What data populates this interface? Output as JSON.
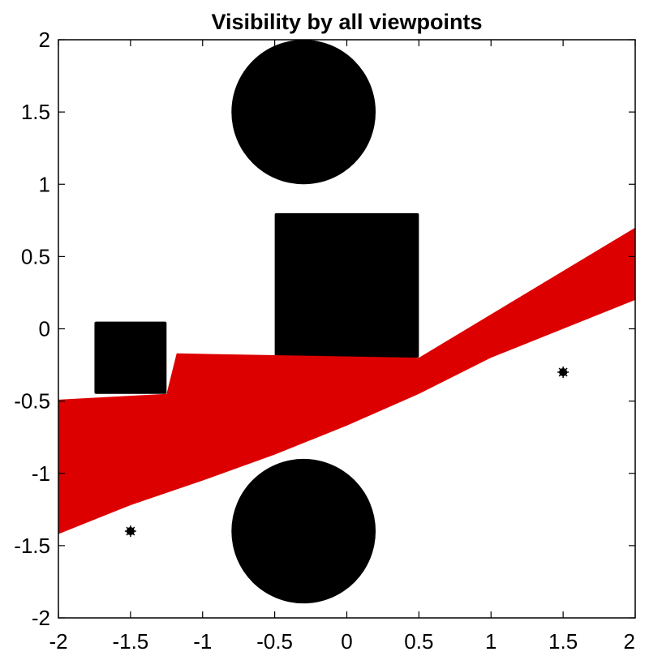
{
  "chart_data": {
    "type": "scatter",
    "title": "Visibility by all viewpoints",
    "xlabel": "",
    "ylabel": "",
    "xlim": [
      -2,
      2
    ],
    "ylim": [
      -2,
      2
    ],
    "xticks": [
      -2,
      -1.5,
      -1,
      -0.5,
      0,
      0.5,
      1,
      1.5,
      2
    ],
    "xtick_labels": [
      "-2",
      "-1.5",
      "-1",
      "-0.5",
      "0",
      "0.5",
      "1",
      "1.5",
      "2"
    ],
    "yticks": [
      -2,
      -1.5,
      -1,
      -0.5,
      0,
      0.5,
      1,
      1.5,
      2
    ],
    "ytick_labels": [
      "-2",
      "-1.5",
      "-1",
      "-0.5",
      "0",
      "0.5",
      "1",
      "1.5",
      "2"
    ],
    "grid": false,
    "obstacles": [
      {
        "shape": "circle",
        "center": [
          -0.3,
          1.5
        ],
        "radius": 0.5,
        "color": "#000000"
      },
      {
        "shape": "circle",
        "center": [
          -0.3,
          -1.4
        ],
        "radius": 0.5,
        "color": "#000000"
      },
      {
        "shape": "rectangle",
        "x": [
          -0.5,
          0.5
        ],
        "y": [
          -0.2,
          0.8
        ],
        "color": "#000000"
      },
      {
        "shape": "rectangle",
        "x": [
          -1.75,
          -1.25
        ],
        "y": [
          -0.45,
          0.05
        ],
        "color": "#000000"
      }
    ],
    "visible_region": {
      "color": "#dd0000",
      "polygon": [
        [
          -2,
          -0.49
        ],
        [
          -1.25,
          -0.45
        ],
        [
          -1.18,
          -0.17
        ],
        [
          0.5,
          -0.2
        ],
        [
          2,
          0.7
        ],
        [
          2,
          0.2
        ],
        [
          1.5,
          0.0
        ],
        [
          1.0,
          -0.2
        ],
        [
          0.5,
          -0.45
        ],
        [
          0.0,
          -0.67
        ],
        [
          -0.5,
          -0.87
        ],
        [
          -1.0,
          -1.05
        ],
        [
          -1.5,
          -1.22
        ],
        [
          -2,
          -1.42
        ]
      ]
    },
    "viewpoints": [
      {
        "x": -1.5,
        "y": -1.4
      },
      {
        "x": 1.5,
        "y": -0.3
      }
    ],
    "viewpoint_color": "#000000"
  }
}
